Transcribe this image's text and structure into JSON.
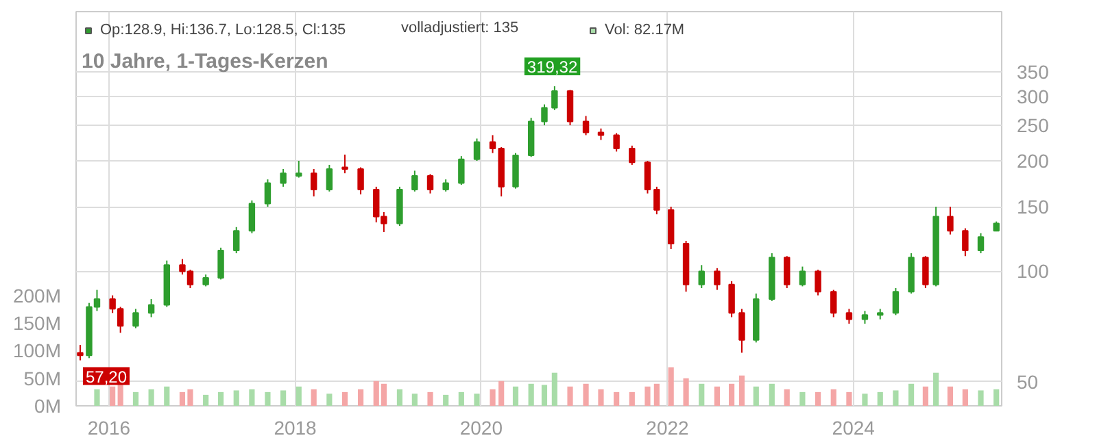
{
  "chart_data": {
    "type": "candlestick",
    "title": "10 Jahre, 1-Tages-Kerzen",
    "x": [
      "2015-09-10",
      "2015-10-15",
      "2015-11-15",
      "2016-01-15",
      "2016-02-15",
      "2016-04-15",
      "2016-06-15",
      "2016-08-15",
      "2016-10-15",
      "2016-11-15",
      "2017-01-15",
      "2017-03-15",
      "2017-05-15",
      "2017-07-15",
      "2017-09-15",
      "2017-11-15",
      "2018-01-15",
      "2018-03-15",
      "2018-05-15",
      "2018-07-15",
      "2018-09-15",
      "2018-11-15",
      "2018-12-15",
      "2019-02-15",
      "2019-04-15",
      "2019-06-15",
      "2019-08-15",
      "2019-10-15",
      "2019-12-15",
      "2020-02-15",
      "2020-03-20",
      "2020-05-15",
      "2020-07-15",
      "2020-09-05",
      "2020-10-15",
      "2020-12-15",
      "2021-02-15",
      "2021-04-15",
      "2021-06-15",
      "2021-08-15",
      "2021-10-15",
      "2021-11-20",
      "2022-01-15",
      "2022-03-15",
      "2022-05-15",
      "2022-07-15",
      "2022-09-10",
      "2022-10-20",
      "2022-12-15",
      "2023-02-15",
      "2023-04-15",
      "2023-06-15",
      "2023-08-15",
      "2023-10-15",
      "2023-12-15",
      "2024-02-15",
      "2024-04-15",
      "2024-06-15",
      "2024-08-15",
      "2024-10-10",
      "2024-11-20",
      "2025-01-15",
      "2025-03-15",
      "2025-05-15",
      "2025-07-15"
    ],
    "series": [
      {
        "name": "Op:128.9, Hi:136.7, Lo:128.5, Cl:135",
        "type": "candlestick",
        "color": "#2e9e2e",
        "ohlc": [
          [
            60,
            63,
            57.2,
            59
          ],
          [
            59,
            82,
            58,
            80
          ],
          [
            80,
            89,
            78,
            84
          ],
          [
            84,
            86,
            77,
            79
          ],
          [
            79,
            80,
            68,
            71
          ],
          [
            71,
            79,
            70,
            77
          ],
          [
            77,
            84,
            75,
            81
          ],
          [
            81,
            107,
            80,
            104
          ],
          [
            104,
            108,
            98,
            100
          ],
          [
            100,
            101,
            90,
            92
          ],
          [
            92,
            98,
            91,
            96
          ],
          [
            96,
            116,
            95,
            114
          ],
          [
            114,
            132,
            112,
            129
          ],
          [
            129,
            156,
            127,
            153
          ],
          [
            153,
            178,
            150,
            174
          ],
          [
            174,
            190,
            170,
            185
          ],
          [
            182,
            200,
            180,
            185
          ],
          [
            185,
            190,
            160,
            167
          ],
          [
            167,
            195,
            165,
            190
          ],
          [
            192,
            208,
            185,
            190
          ],
          [
            190,
            192,
            162,
            167
          ],
          [
            167,
            170,
            136,
            141
          ],
          [
            141,
            145,
            128,
            135
          ],
          [
            135,
            170,
            133,
            167
          ],
          [
            167,
            188,
            165,
            182
          ],
          [
            182,
            184,
            163,
            167
          ],
          [
            167,
            178,
            165,
            174
          ],
          [
            174,
            206,
            172,
            202
          ],
          [
            202,
            230,
            200,
            225
          ],
          [
            225,
            235,
            210,
            216
          ],
          [
            216,
            218,
            160,
            170
          ],
          [
            170,
            210,
            168,
            207
          ],
          [
            207,
            262,
            205,
            256
          ],
          [
            256,
            285,
            250,
            279
          ],
          [
            279,
            319.32,
            275,
            310
          ],
          [
            310,
            312,
            250,
            256
          ],
          [
            256,
            265,
            235,
            239
          ],
          [
            239,
            245,
            228,
            235
          ],
          [
            235,
            238,
            212,
            216
          ],
          [
            216,
            220,
            195,
            198
          ],
          [
            198,
            200,
            163,
            167
          ],
          [
            167,
            170,
            143,
            147
          ],
          [
            147,
            150,
            115,
            119
          ],
          [
            119,
            121,
            88,
            92
          ],
          [
            92,
            104,
            90,
            100
          ],
          [
            100,
            102,
            89,
            92
          ],
          [
            92,
            94,
            75,
            77
          ],
          [
            77,
            79,
            60,
            65
          ],
          [
            65,
            87,
            64,
            84
          ],
          [
            84,
            112,
            83,
            109
          ],
          [
            109,
            110,
            90,
            92
          ],
          [
            92,
            103,
            91,
            100
          ],
          [
            100,
            101,
            86,
            88
          ],
          [
            88,
            89,
            75,
            77
          ],
          [
            77,
            79,
            72,
            74
          ],
          [
            74,
            78,
            72,
            76
          ],
          [
            76,
            79,
            74,
            77
          ],
          [
            77,
            90,
            76,
            88
          ],
          [
            88,
            112,
            87,
            109
          ],
          [
            109,
            110,
            90,
            92
          ],
          [
            92,
            150,
            91,
            141
          ],
          [
            141,
            150,
            126,
            129
          ],
          [
            129,
            131,
            110,
            114
          ],
          [
            114,
            127,
            112,
            124
          ],
          [
            128.9,
            136.7,
            128.5,
            135
          ]
        ],
        "colors": [
          "#cc0000",
          "#2e9e2e",
          "#2e9e2e",
          "#cc0000",
          "#cc0000",
          "#2e9e2e",
          "#2e9e2e",
          "#2e9e2e",
          "#cc0000",
          "#cc0000",
          "#2e9e2e",
          "#2e9e2e",
          "#2e9e2e",
          "#2e9e2e",
          "#2e9e2e",
          "#2e9e2e",
          "#2e9e2e",
          "#cc0000",
          "#2e9e2e",
          "#cc0000",
          "#cc0000",
          "#cc0000",
          "#cc0000",
          "#2e9e2e",
          "#2e9e2e",
          "#cc0000",
          "#2e9e2e",
          "#2e9e2e",
          "#2e9e2e",
          "#cc0000",
          "#cc0000",
          "#2e9e2e",
          "#2e9e2e",
          "#2e9e2e",
          "#2e9e2e",
          "#cc0000",
          "#cc0000",
          "#cc0000",
          "#cc0000",
          "#cc0000",
          "#cc0000",
          "#cc0000",
          "#cc0000",
          "#cc0000",
          "#2e9e2e",
          "#cc0000",
          "#cc0000",
          "#cc0000",
          "#2e9e2e",
          "#2e9e2e",
          "#cc0000",
          "#2e9e2e",
          "#cc0000",
          "#cc0000",
          "#cc0000",
          "#2e9e2e",
          "#2e9e2e",
          "#2e9e2e",
          "#2e9e2e",
          "#cc0000",
          "#2e9e2e",
          "#cc0000",
          "#cc0000",
          "#2e9e2e",
          "#2e9e2e"
        ]
      },
      {
        "name": "Vol: 82.17M",
        "type": "bar",
        "axis": "y2",
        "color": "#a8dca8",
        "values": [
          null,
          null,
          30,
          35,
          40,
          25,
          30,
          35,
          25,
          30,
          20,
          25,
          28,
          30,
          25,
          28,
          35,
          30,
          22,
          25,
          30,
          45,
          40,
          30,
          22,
          25,
          20,
          25,
          22,
          30,
          45,
          35,
          40,
          38,
          60,
          35,
          40,
          30,
          25,
          25,
          35,
          40,
          70,
          50,
          40,
          35,
          40,
          55,
          35,
          40,
          30,
          25,
          25,
          30,
          25,
          22,
          25,
          28,
          40,
          35,
          60,
          35,
          30,
          28,
          30
        ],
        "colors": [
          "#f4a6a6",
          "#a8dca8",
          "#a8dca8",
          "#f4a6a6",
          "#f4a6a6",
          "#a8dca8",
          "#a8dca8",
          "#a8dca8",
          "#f4a6a6",
          "#f4a6a6",
          "#a8dca8",
          "#a8dca8",
          "#a8dca8",
          "#a8dca8",
          "#a8dca8",
          "#a8dca8",
          "#a8dca8",
          "#f4a6a6",
          "#a8dca8",
          "#f4a6a6",
          "#f4a6a6",
          "#f4a6a6",
          "#f4a6a6",
          "#a8dca8",
          "#a8dca8",
          "#f4a6a6",
          "#a8dca8",
          "#a8dca8",
          "#a8dca8",
          "#f4a6a6",
          "#f4a6a6",
          "#a8dca8",
          "#a8dca8",
          "#a8dca8",
          "#a8dca8",
          "#f4a6a6",
          "#f4a6a6",
          "#f4a6a6",
          "#f4a6a6",
          "#f4a6a6",
          "#f4a6a6",
          "#f4a6a6",
          "#f4a6a6",
          "#f4a6a6",
          "#a8dca8",
          "#f4a6a6",
          "#f4a6a6",
          "#f4a6a6",
          "#a8dca8",
          "#a8dca8",
          "#f4a6a6",
          "#a8dca8",
          "#f4a6a6",
          "#f4a6a6",
          "#f4a6a6",
          "#a8dca8",
          "#a8dca8",
          "#a8dca8",
          "#a8dca8",
          "#f4a6a6",
          "#a8dca8",
          "#f4a6a6",
          "#f4a6a6",
          "#a8dca8",
          "#a8dca8"
        ]
      }
    ],
    "xlim": [
      "2015-08-25",
      "2025-08-05"
    ],
    "xticks": [
      {
        "value": "2016-01-01",
        "label": "2016"
      },
      {
        "value": "2018-01-01",
        "label": "2018"
      },
      {
        "value": "2020-01-01",
        "label": "2020"
      },
      {
        "value": "2022-01-01",
        "label": "2022"
      },
      {
        "value": "2024-01-01",
        "label": "2024"
      }
    ],
    "ylim": [
      43,
      510
    ],
    "yticks": [
      50,
      100,
      150,
      200,
      250,
      300,
      350
    ],
    "log": "y",
    "y2lim": [
      0,
      715
    ],
    "y2ticks": [
      {
        "value": 0,
        "label": "0M"
      },
      {
        "value": 50,
        "label": "50M"
      },
      {
        "value": 100,
        "label": "100M"
      },
      {
        "value": 150,
        "label": "150M"
      },
      {
        "value": 200,
        "label": "200M"
      }
    ],
    "grid": true,
    "legend": "top left",
    "annotations": [
      "volladjustiert: 135",
      {
        "text": "319,32",
        "x": "2020-10-15",
        "y": 319.32
      },
      {
        "text": "57,20",
        "x": "2015-09-10",
        "y": 57.2
      }
    ]
  }
}
